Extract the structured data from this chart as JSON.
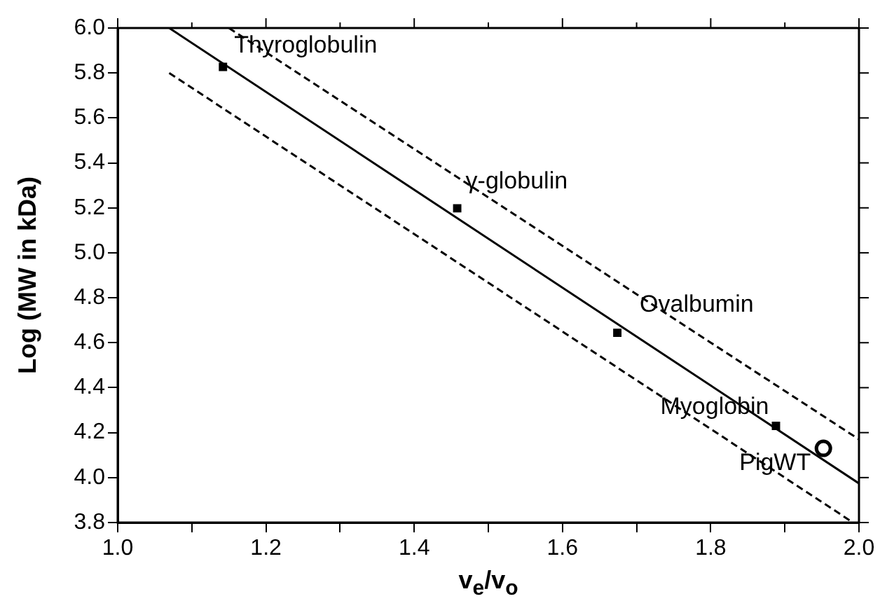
{
  "chart_data": {
    "type": "scatter",
    "xlabel": "v$_{e}$/v$_{o}$",
    "ylabel": "Log (MW in kDa)",
    "xlim": [
      1.0,
      2.0
    ],
    "ylim": [
      3.8,
      6.0
    ],
    "xticks": [
      {
        "value": 1.0,
        "label": "1.0"
      },
      {
        "value": 1.1,
        "label": null
      },
      1.2,
      {
        "value": 1.3,
        "label": null
      },
      1.4,
      {
        "value": 1.5,
        "label": null
      },
      1.6,
      {
        "value": 1.7,
        "label": null
      },
      1.8,
      {
        "value": 1.9,
        "label": null
      },
      {
        "value": 2.0,
        "label": "2.0"
      }
    ],
    "yticks": [
      3.8,
      {
        "value": 4.0,
        "label": "4.0"
      },
      4.2,
      4.4,
      4.6,
      4.8,
      {
        "value": 5.0,
        "label": "5.0"
      },
      5.2,
      5.4,
      5.6,
      5.8,
      {
        "value": 6.0,
        "label": "6.0"
      }
    ],
    "grid": false,
    "legend": false,
    "series": [
      {
        "type": "scatter",
        "color": "#000000",
        "marker": "square",
        "x": [
          1.142,
          1.458,
          1.674,
          1.888
        ],
        "values": [
          5.827,
          5.198,
          4.644,
          4.23
        ]
      },
      {
        "type": "scatter",
        "color": "#000000",
        "marker": "circle",
        "x": [
          1.952
        ],
        "values": [
          4.13
        ]
      },
      {
        "type": "line",
        "color": "#000000",
        "line_style": "solid",
        "marker": "none",
        "x": [
          1.0695,
          2.0
        ],
        "values": [
          6.0,
          3.974
        ]
      },
      {
        "type": "line",
        "color": "#000000",
        "line_style": "dashed",
        "marker": "none",
        "x": [
          1.15,
          2.0
        ],
        "values": [
          6.0,
          4.17
        ]
      },
      {
        "type": "line",
        "color": "#000000",
        "line_style": "dashed",
        "marker": "none",
        "x": [
          1.0695,
          1.992
        ],
        "values": [
          5.8,
          3.8
        ]
      }
    ],
    "annotations": [
      {
        "text": "Thyroglobulin",
        "x": 1.142,
        "y": 5.827
      },
      {
        "text": "γ-globulin",
        "x": 1.458,
        "y": 5.198
      },
      {
        "text": "Ovalbumin",
        "x": 1.674,
        "y": 4.644
      },
      {
        "text": "Myoglobin",
        "x": 1.888,
        "y": 4.23
      },
      {
        "text": "PigWT",
        "x": 1.952,
        "y": 4.13
      }
    ]
  }
}
